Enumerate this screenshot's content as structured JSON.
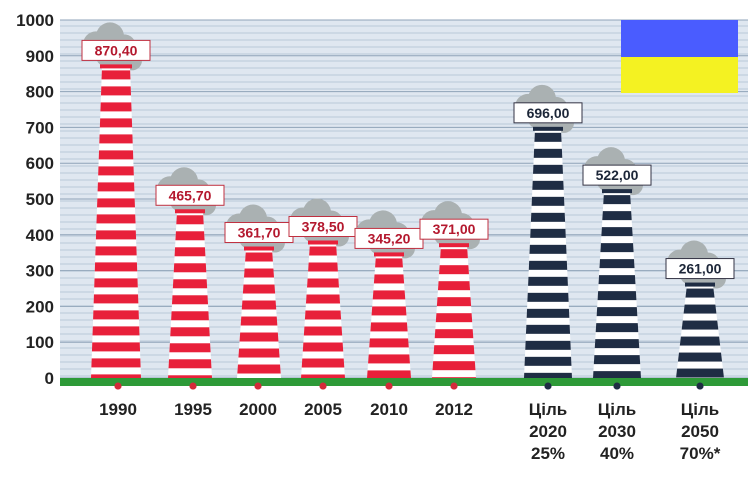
{
  "colors": {
    "background": "#dfe7f0",
    "gridline": "#b9c8d8",
    "ground": "#2e9a38",
    "historic_stripe": "#e8203a",
    "target_stripe": "#1f2d44",
    "historic_label": "#b4182e",
    "target_label": "#1c2638",
    "smoke": "#aab1b2",
    "flag_top": "#4a5cff",
    "flag_bottom": "#f4f222"
  },
  "icons": {
    "flag": "ukraine-flag-icon",
    "smoke": "smoke-cloud-icon",
    "chimney": "chimney-icon"
  },
  "chart_data": {
    "type": "bar",
    "ylim": [
      0,
      1000
    ],
    "yticks": [
      "0",
      "100",
      "200",
      "300",
      "400",
      "500",
      "600",
      "700",
      "800",
      "900",
      "1000"
    ],
    "categories": [
      {
        "lines": [
          "1990"
        ],
        "value": 870.4,
        "label": "870,40",
        "kind": "historic"
      },
      {
        "lines": [
          "1995"
        ],
        "value": 465.7,
        "label": "465,70",
        "kind": "historic"
      },
      {
        "lines": [
          "2000"
        ],
        "value": 361.7,
        "label": "361,70",
        "kind": "historic"
      },
      {
        "lines": [
          "2005"
        ],
        "value": 378.5,
        "label": "378,50",
        "kind": "historic"
      },
      {
        "lines": [
          "2010"
        ],
        "value": 345.2,
        "label": "345,20",
        "kind": "historic"
      },
      {
        "lines": [
          "2012"
        ],
        "value": 371.0,
        "label": "371,00",
        "kind": "historic"
      },
      {
        "lines": [
          "Ціль",
          "2020",
          "25%"
        ],
        "value": 696.0,
        "label": "696,00",
        "kind": "target"
      },
      {
        "lines": [
          "Ціль",
          "2030",
          "40%"
        ],
        "value": 522.0,
        "label": "522,00",
        "kind": "target"
      },
      {
        "lines": [
          "Ціль",
          "2050",
          "70%*"
        ],
        "value": 261.0,
        "label": "261,00",
        "kind": "target"
      }
    ],
    "grid": true
  }
}
